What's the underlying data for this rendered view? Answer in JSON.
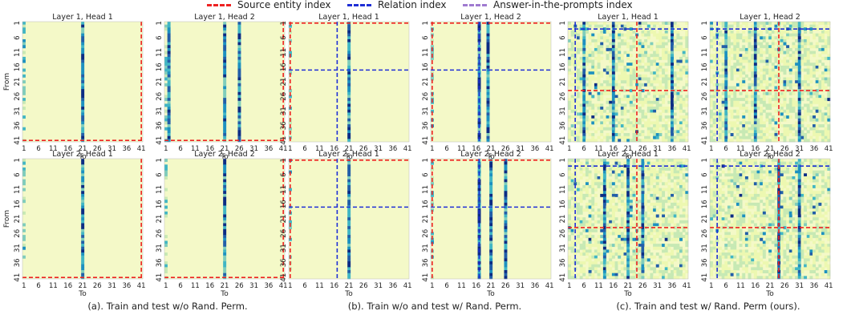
{
  "legend": [
    {
      "label": "Source entity index",
      "color": "#ee2222"
    },
    {
      "label": "Relation index",
      "color": "#1f2fd6"
    },
    {
      "label": "Answer-in-the-prompts index",
      "color": "#a07ad0"
    }
  ],
  "captions": [
    "(a). Train and test w/o Rand. Perm.",
    "(b). Train w/o and test w/ Rand. Perm.",
    "(c). Train and test w/ Rand. Perm (ours)."
  ],
  "chart_data": {
    "type": "heatmap",
    "xlabel": "To",
    "ylabel": "From",
    "tick_labels": [
      "1",
      "6",
      "11",
      "16",
      "21",
      "26",
      "31",
      "36",
      "41"
    ],
    "colormap": [
      "#ffffd9",
      "#edf8b1",
      "#c7e9b4",
      "#7fcdbb",
      "#41b6c4",
      "#1d91c0",
      "#225ea8",
      "#0c2c84"
    ],
    "panels": [
      {
        "group": "a",
        "title": "Layer 1, Head 1",
        "source": [
          41
        ],
        "relation": [],
        "answer": [],
        "hot_cols": [
          21
        ],
        "hot_rows": []
      },
      {
        "group": "a",
        "title": "Layer 1, Head 2",
        "source": [
          41
        ],
        "relation": [],
        "answer": [],
        "hot_cols": [
          2,
          21,
          26
        ],
        "hot_rows": []
      },
      {
        "group": "a",
        "title": "Layer 2, Head 1",
        "source": [
          41
        ],
        "relation": [],
        "answer": [],
        "hot_cols": [
          21
        ],
        "hot_rows": []
      },
      {
        "group": "a",
        "title": "Layer 2, Head 2",
        "source": [
          41
        ],
        "relation": [],
        "answer": [],
        "hot_cols": [
          21
        ],
        "hot_rows": []
      },
      {
        "group": "b",
        "title": "Layer 1, Head 1",
        "source": [
          1
        ],
        "relation": [
          17
        ],
        "answer": [],
        "hot_cols": [
          21
        ],
        "hot_rows": []
      },
      {
        "group": "b",
        "title": "Layer 1, Head 2",
        "source": [
          1
        ],
        "relation": [
          17
        ],
        "answer": [],
        "hot_cols": [
          17,
          20
        ],
        "hot_rows": []
      },
      {
        "group": "b",
        "title": "Layer 2, Head 1",
        "source": [
          1
        ],
        "relation": [
          17
        ],
        "answer": [],
        "hot_cols": [
          21
        ],
        "hot_rows": []
      },
      {
        "group": "b",
        "title": "Layer 2, Head 2",
        "source": [
          1
        ],
        "relation": [
          17
        ],
        "answer": [],
        "hot_cols": [
          17,
          21,
          26
        ],
        "hot_rows": []
      },
      {
        "group": "c",
        "title": "Layer 1, Head 1",
        "source": [
          24
        ],
        "relation": [
          3
        ],
        "answer": [],
        "hot_cols": [
          6,
          16,
          36
        ],
        "hot_rows": []
      },
      {
        "group": "c",
        "title": "Layer 1, Head 2",
        "source": [
          24
        ],
        "relation": [
          3
        ],
        "answer": [],
        "hot_cols": [
          6,
          16,
          31
        ],
        "hot_rows": []
      },
      {
        "group": "c",
        "title": "Layer 2, Head 1",
        "source": [
          24
        ],
        "relation": [
          3
        ],
        "answer": [],
        "hot_cols": [
          13,
          21,
          26
        ],
        "hot_rows": []
      },
      {
        "group": "c",
        "title": "Layer 2, Head 2",
        "source": [
          24
        ],
        "relation": [
          3
        ],
        "answer": [],
        "hot_cols": [
          24,
          31
        ],
        "hot_rows": []
      }
    ]
  }
}
